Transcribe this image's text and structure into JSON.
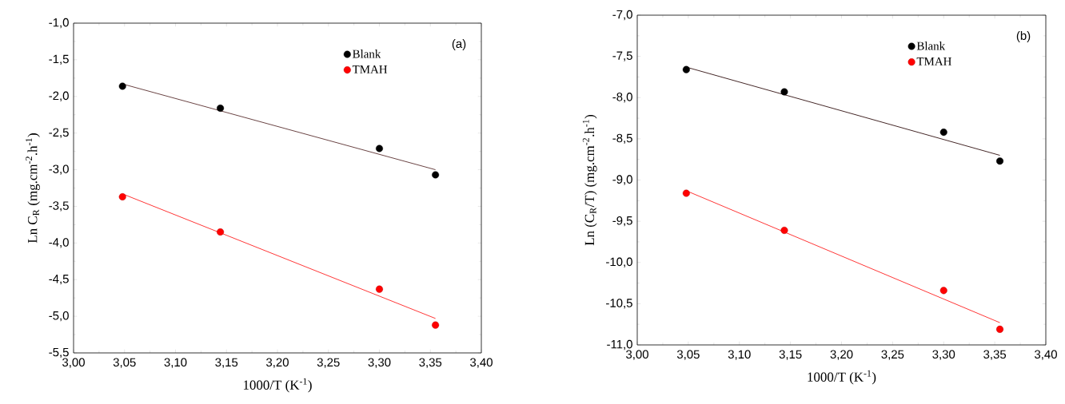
{
  "chart_data": [
    {
      "type": "scatter",
      "xlabel": "1000/T (K$^{-1}$)",
      "ylabel": "Ln C$_{R}$ (mg.cm$^{-2}$.h$^{-1}$)",
      "annotations": [
        "(a)"
      ],
      "xlim": [
        3.0,
        3.4
      ],
      "ylim": [
        -5.5,
        -1.0
      ],
      "xticks": [
        {
          "value": 3.0,
          "label": "3,00"
        },
        {
          "value": 3.05,
          "label": "3,05"
        },
        {
          "value": 3.1,
          "label": "3,10"
        },
        {
          "value": 3.15,
          "label": "3,15"
        },
        {
          "value": 3.2,
          "label": "3,20"
        },
        {
          "value": 3.25,
          "label": "3,25"
        },
        {
          "value": 3.3,
          "label": "3,30"
        },
        {
          "value": 3.35,
          "label": "3,35"
        },
        {
          "value": 3.4,
          "label": "3,40"
        }
      ],
      "yticks": [
        {
          "value": -5.5,
          "label": "-5,5"
        },
        {
          "value": -5.0,
          "label": "-5,0"
        },
        {
          "value": -4.5,
          "label": "-4,5"
        },
        {
          "value": -4.0,
          "label": "-4,0"
        },
        {
          "value": -3.5,
          "label": "-3,5"
        },
        {
          "value": -3.0,
          "label": "-3,0"
        },
        {
          "value": -2.5,
          "label": "-2,5"
        },
        {
          "value": -2.0,
          "label": "-2,0"
        },
        {
          "value": -1.5,
          "label": "-1,5"
        },
        {
          "value": -1.0,
          "label": "-1,0"
        }
      ],
      "legend": "top right",
      "grid": false,
      "series": [
        {
          "name": "Blank",
          "type": "scatter",
          "marker": "circle",
          "color": "#000000",
          "x": [
            3.048,
            3.144,
            3.3,
            3.355
          ],
          "values": [
            -1.86,
            -2.16,
            -2.71,
            -3.07
          ]
        },
        {
          "name": "TMAH",
          "type": "scatter",
          "marker": "circle",
          "color": "#ff0000",
          "x": [
            3.048,
            3.144,
            3.3,
            3.355
          ],
          "values": [
            -3.37,
            -3.85,
            -4.63,
            -5.12
          ]
        },
        {
          "type": "line",
          "line_style": "solid",
          "marker": "none",
          "color": "#5a3030",
          "x": [
            3.048,
            3.355
          ],
          "values": [
            -1.83,
            -3.0
          ]
        },
        {
          "type": "line",
          "line_style": "solid",
          "marker": "none",
          "color": "#ff2020",
          "x": [
            3.048,
            3.355
          ],
          "values": [
            -3.33,
            -5.03
          ]
        }
      ]
    },
    {
      "type": "scatter",
      "xlabel": "1000/T (K$^{-1}$)",
      "ylabel": "Ln (C$_{R}$/T) (mg.cm$^{-2}$.h$^{-1}$)",
      "annotations": [
        "(b)"
      ],
      "xlim": [
        3.0,
        3.4
      ],
      "ylim": [
        -11.0,
        -7.0
      ],
      "xticks": [
        {
          "value": 3.0,
          "label": "3,00"
        },
        {
          "value": 3.05,
          "label": "3,05"
        },
        {
          "value": 3.1,
          "label": "3,10"
        },
        {
          "value": 3.15,
          "label": "3,15"
        },
        {
          "value": 3.2,
          "label": "3,20"
        },
        {
          "value": 3.25,
          "label": "3,25"
        },
        {
          "value": 3.3,
          "label": "3,30"
        },
        {
          "value": 3.35,
          "label": "3,35"
        },
        {
          "value": 3.4,
          "label": "3,40"
        }
      ],
      "yticks": [
        {
          "value": -11.0,
          "label": "-11,0"
        },
        {
          "value": -10.5,
          "label": "-10,5"
        },
        {
          "value": -10.0,
          "label": "-10,0"
        },
        {
          "value": -9.5,
          "label": "-9,5"
        },
        {
          "value": -9.0,
          "label": "-9,0"
        },
        {
          "value": -8.5,
          "label": "-8,5"
        },
        {
          "value": -8.0,
          "label": "-8,0"
        },
        {
          "value": -7.5,
          "label": "-7,5"
        },
        {
          "value": -7.0,
          "label": "-7,0"
        }
      ],
      "legend": "top right",
      "grid": false,
      "series": [
        {
          "name": "Blank",
          "type": "scatter",
          "marker": "circle",
          "color": "#000000",
          "x": [
            3.048,
            3.144,
            3.3,
            3.355
          ],
          "values": [
            -7.66,
            -7.93,
            -8.42,
            -8.77
          ]
        },
        {
          "name": "TMAH",
          "type": "scatter",
          "marker": "circle",
          "color": "#ff0000",
          "x": [
            3.048,
            3.144,
            3.3,
            3.355
          ],
          "values": [
            -9.16,
            -9.61,
            -10.34,
            -10.81
          ]
        },
        {
          "type": "line",
          "line_style": "solid",
          "marker": "none",
          "color": "#301010",
          "x": [
            3.048,
            3.355
          ],
          "values": [
            -7.63,
            -8.7
          ]
        },
        {
          "type": "line",
          "line_style": "solid",
          "marker": "none",
          "color": "#ff2020",
          "x": [
            3.048,
            3.355
          ],
          "values": [
            -9.13,
            -10.73
          ]
        }
      ]
    }
  ]
}
